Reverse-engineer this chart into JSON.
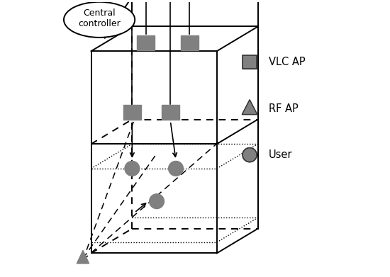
{
  "background_color": "#ffffff",
  "box_color": "#000000",
  "gray": "#808080",
  "title": "Central\ncontroller",
  "legend_labels": [
    "VLC AP",
    "RF AP",
    "User"
  ],
  "fig_width": 5.5,
  "fig_height": 3.91,
  "dpi": 100
}
